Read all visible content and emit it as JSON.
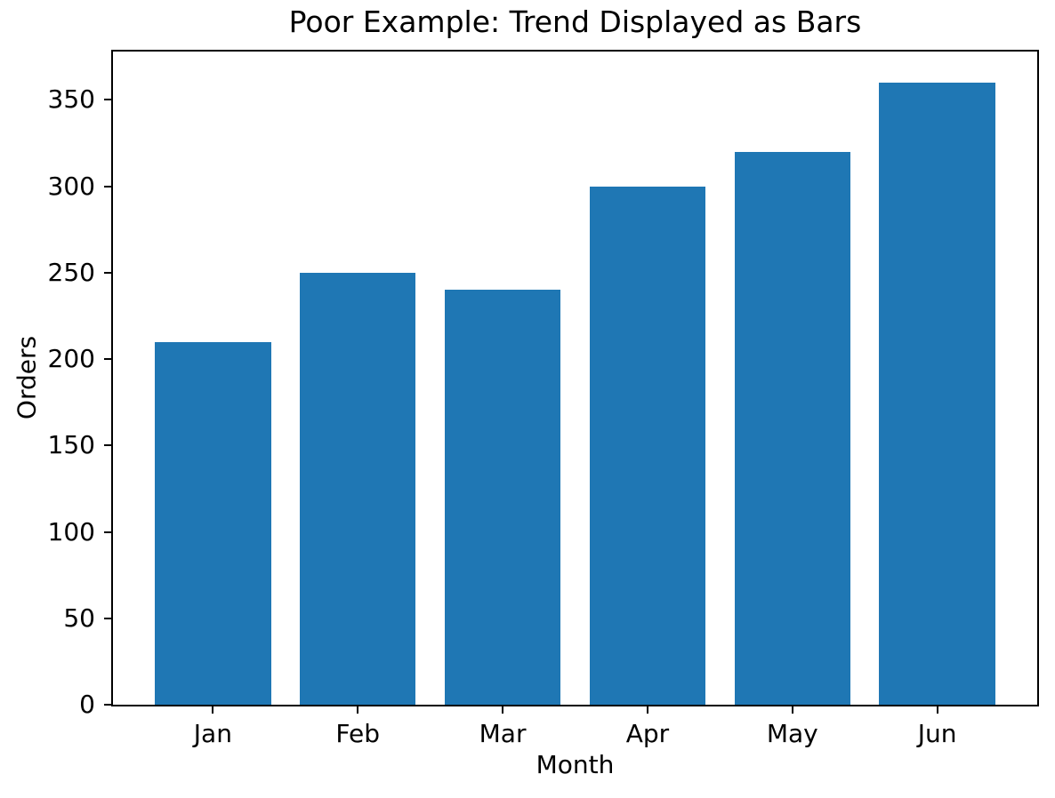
{
  "chart_data": {
    "type": "bar",
    "title": "Poor Example: Trend Displayed as Bars",
    "xlabel": "Month",
    "ylabel": "Orders",
    "categories": [
      "Jan",
      "Feb",
      "Mar",
      "Apr",
      "May",
      "Jun"
    ],
    "values": [
      210,
      250,
      240,
      300,
      320,
      360
    ],
    "yticks": [
      0,
      50,
      100,
      150,
      200,
      250,
      300,
      350
    ],
    "ylim": [
      0,
      378
    ],
    "xlim": [
      -0.69,
      5.69
    ],
    "bar_width": 0.8,
    "bar_color": "#1f77b4",
    "spine_color": "#000000",
    "text_color": "#000000",
    "background_color": "#ffffff",
    "grid": false,
    "legend": null
  }
}
